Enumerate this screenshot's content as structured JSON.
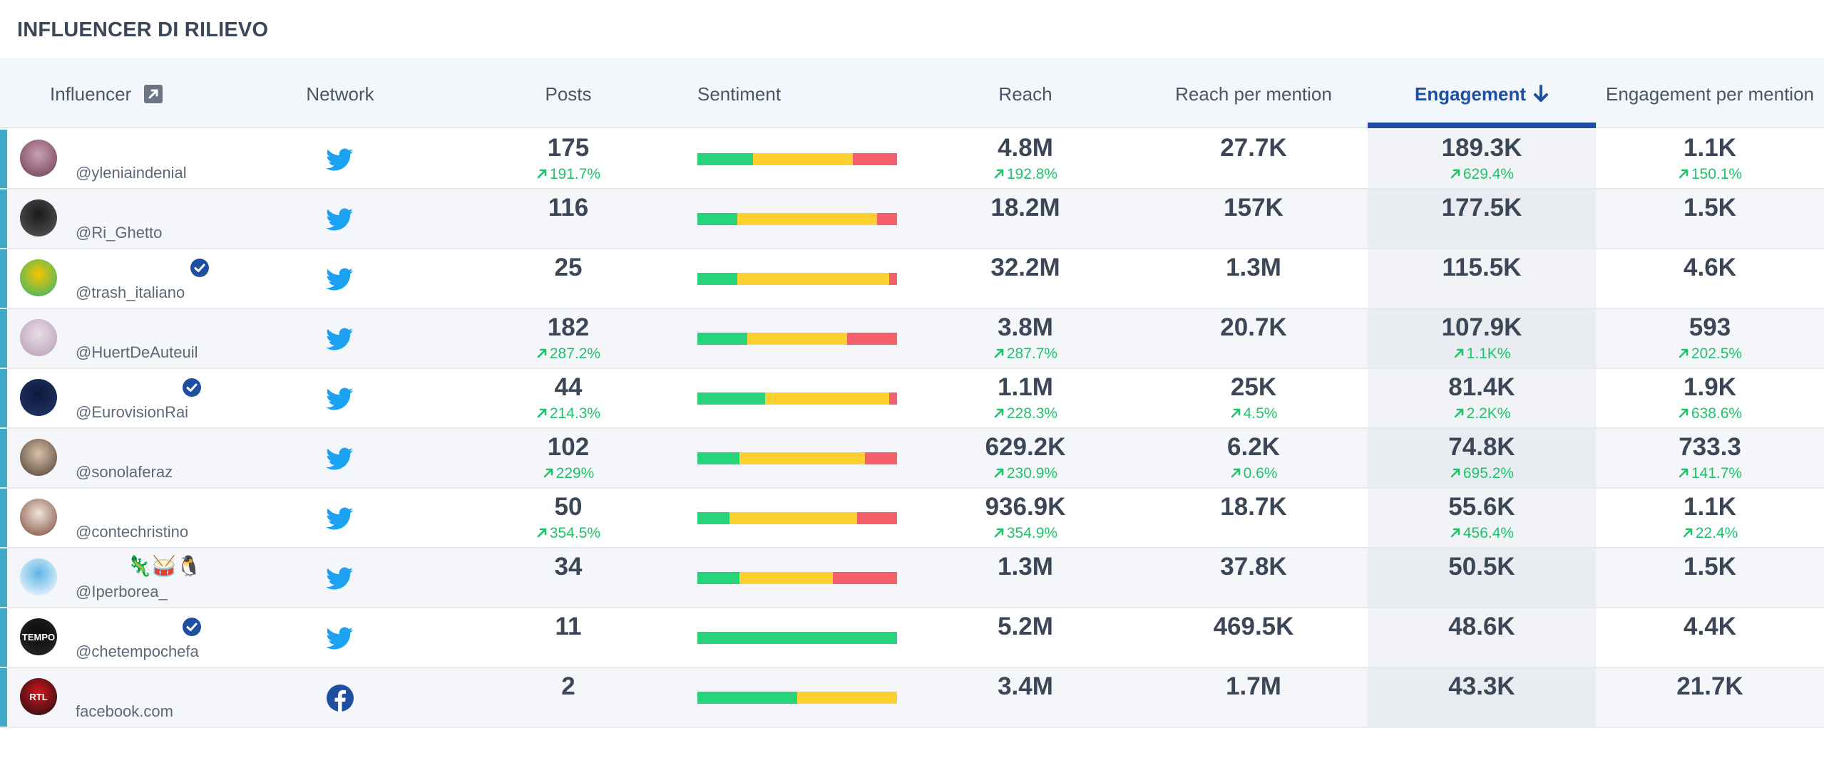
{
  "panel": {
    "title": "INFLUENCER DI RILIEVO"
  },
  "columns": {
    "influencer": "Influencer",
    "network": "Network",
    "posts": "Posts",
    "sentiment": "Sentiment",
    "reach": "Reach",
    "reach_per_mention": "Reach per mention",
    "engagement": "Engagement",
    "engagement_per_mention": "Engagement per mention"
  },
  "sort": {
    "column": "engagement",
    "direction": "descending"
  },
  "colors": {
    "positive": "#27d47b",
    "neutral": "#fbd030",
    "negative": "#f4606a",
    "accent": "#3fa9c9",
    "sorted": "#1f4fa0",
    "delta_up": "#1fc46a",
    "twitter": "#1da1f2",
    "facebook": "#1f4fa0"
  },
  "rows": [
    {
      "handle": "@yleniaindenial",
      "verified": false,
      "emojis": "",
      "network": "twitter-icon",
      "posts": "175",
      "posts_delta": "191.7%",
      "sentiment": {
        "positive": 0.28,
        "neutral": 0.5,
        "negative": 0.22
      },
      "reach": "4.8M",
      "reach_delta": "192.8%",
      "reach_per_mention": "27.7K",
      "reach_per_mention_delta": "",
      "engagement": "189.3K",
      "engagement_delta": "629.4%",
      "engagement_per_mention": "1.1K",
      "engagement_per_mention_delta": "150.1%",
      "avatar_colors": [
        "#c9a0b4",
        "#6e3a52"
      ]
    },
    {
      "handle": "@Ri_Ghetto",
      "verified": false,
      "emojis": "",
      "network": "twitter-icon",
      "posts": "116",
      "posts_delta": "",
      "sentiment": {
        "positive": 0.2,
        "neutral": 0.7,
        "negative": 0.1
      },
      "reach": "18.2M",
      "reach_delta": "",
      "reach_per_mention": "157K",
      "reach_per_mention_delta": "",
      "engagement": "177.5K",
      "engagement_delta": "",
      "engagement_per_mention": "1.5K",
      "engagement_per_mention_delta": "",
      "avatar_colors": [
        "#1a1a1a",
        "#5a5a5a"
      ]
    },
    {
      "handle": "@trash_italiano",
      "verified": true,
      "emojis": "",
      "network": "twitter-icon",
      "posts": "25",
      "posts_delta": "",
      "sentiment": {
        "positive": 0.2,
        "neutral": 0.76,
        "negative": 0.04
      },
      "reach": "32.2M",
      "reach_delta": "",
      "reach_per_mention": "1.3M",
      "reach_per_mention_delta": "",
      "engagement": "115.5K",
      "engagement_delta": "",
      "engagement_per_mention": "4.6K",
      "engagement_per_mention_delta": "",
      "avatar_colors": [
        "#f5c400",
        "#2bb673"
      ]
    },
    {
      "handle": "@HuertDeAuteuil",
      "verified": false,
      "emojis": "",
      "network": "twitter-icon",
      "posts": "182",
      "posts_delta": "287.2%",
      "sentiment": {
        "positive": 0.25,
        "neutral": 0.5,
        "negative": 0.25
      },
      "reach": "3.8M",
      "reach_delta": "287.7%",
      "reach_per_mention": "20.7K",
      "reach_per_mention_delta": "",
      "engagement": "107.9K",
      "engagement_delta": "1.1K%",
      "engagement_per_mention": "593",
      "engagement_per_mention_delta": "202.5%",
      "avatar_colors": [
        "#e8dde6",
        "#b79ab8"
      ]
    },
    {
      "handle": "@EurovisionRai",
      "verified": true,
      "emojis": "",
      "network": "twitter-icon",
      "posts": "44",
      "posts_delta": "214.3%",
      "sentiment": {
        "positive": 0.34,
        "neutral": 0.62,
        "negative": 0.04
      },
      "reach": "1.1M",
      "reach_delta": "228.3%",
      "reach_per_mention": "25K",
      "reach_per_mention_delta": "4.5%",
      "engagement": "81.4K",
      "engagement_delta": "2.2K%",
      "engagement_per_mention": "1.9K",
      "engagement_per_mention_delta": "638.6%",
      "avatar_colors": [
        "#0e1a3a",
        "#24346b"
      ]
    },
    {
      "handle": "@sonolaferaz",
      "verified": false,
      "emojis": "",
      "network": "twitter-icon",
      "posts": "102",
      "posts_delta": "229%",
      "sentiment": {
        "positive": 0.21,
        "neutral": 0.63,
        "negative": 0.16
      },
      "reach": "629.2K",
      "reach_delta": "230.9%",
      "reach_per_mention": "6.2K",
      "reach_per_mention_delta": "0.6%",
      "engagement": "74.8K",
      "engagement_delta": "695.2%",
      "engagement_per_mention": "733.3",
      "engagement_per_mention_delta": "141.7%",
      "avatar_colors": [
        "#d9c2aa",
        "#4a3a30"
      ]
    },
    {
      "handle": "@contechristino",
      "verified": false,
      "emojis": "",
      "network": "twitter-icon",
      "posts": "50",
      "posts_delta": "354.5%",
      "sentiment": {
        "positive": 0.16,
        "neutral": 0.64,
        "negative": 0.2
      },
      "reach": "936.9K",
      "reach_delta": "354.9%",
      "reach_per_mention": "18.7K",
      "reach_per_mention_delta": "",
      "engagement": "55.6K",
      "engagement_delta": "456.4%",
      "engagement_per_mention": "1.1K",
      "engagement_per_mention_delta": "22.4%",
      "avatar_colors": [
        "#f1e3da",
        "#7a4a38"
      ]
    },
    {
      "handle": "@Iperborea_",
      "verified": false,
      "emojis": "🦎🥁🐧",
      "network": "twitter-icon",
      "posts": "34",
      "posts_delta": "",
      "sentiment": {
        "positive": 0.21,
        "neutral": 0.47,
        "negative": 0.32
      },
      "reach": "1.3M",
      "reach_delta": "",
      "reach_per_mention": "37.8K",
      "reach_per_mention_delta": "",
      "engagement": "50.5K",
      "engagement_delta": "",
      "engagement_per_mention": "1.5K",
      "engagement_per_mention_delta": "",
      "avatar_colors": [
        "#5fb4e6",
        "#ffffff"
      ]
    },
    {
      "handle": "@chetempochefa",
      "verified": true,
      "emojis": "",
      "network": "twitter-icon",
      "posts": "11",
      "posts_delta": "",
      "sentiment": {
        "positive": 1.0,
        "neutral": 0.0,
        "negative": 0.0
      },
      "reach": "5.2M",
      "reach_delta": "",
      "reach_per_mention": "469.5K",
      "reach_per_mention_delta": "",
      "engagement": "48.6K",
      "engagement_delta": "",
      "engagement_per_mention": "4.4K",
      "engagement_per_mention_delta": "",
      "avatar_colors": [
        "#0a0a0a",
        "#2a2a2a"
      ],
      "avatar_text": "TEMPO"
    },
    {
      "handle": "facebook.com",
      "verified": false,
      "emojis": "",
      "network": "facebook-icon",
      "posts": "2",
      "posts_delta": "",
      "sentiment": {
        "positive": 0.5,
        "neutral": 0.5,
        "negative": 0.0
      },
      "reach": "3.4M",
      "reach_delta": "",
      "reach_per_mention": "1.7M",
      "reach_per_mention_delta": "",
      "engagement": "43.3K",
      "engagement_delta": "",
      "engagement_per_mention": "21.7K",
      "engagement_per_mention_delta": "",
      "avatar_colors": [
        "#d7141a",
        "#111111"
      ],
      "avatar_text": "RTL"
    }
  ]
}
